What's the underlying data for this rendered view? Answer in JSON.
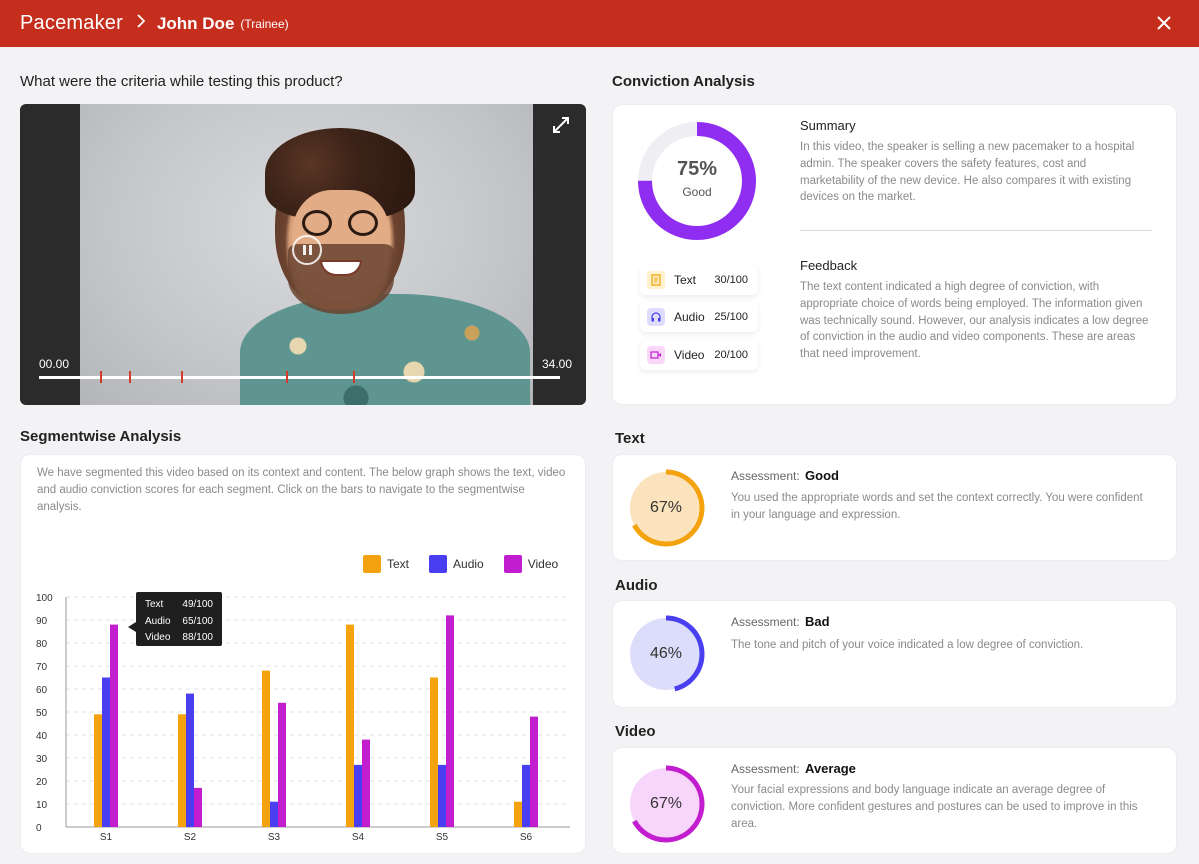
{
  "header": {
    "app_title": "Pacemaker",
    "breadcrumb_sep": ">",
    "name": "John Doe",
    "role": "(Trainee)"
  },
  "question": "What were the criteria while testing this product?",
  "video": {
    "time_start": "00.00",
    "time_end": "34.00"
  },
  "segmentwise": {
    "title": "Segmentwise Analysis",
    "description": "We have segmented this video based on its context and content. The below graph shows the text, video and audio conviction scores for each segment. Click on the bars to navigate to the segmentwise analysis."
  },
  "colors": {
    "text": "#f4a20d",
    "audio": "#4a3ff0",
    "video": "#c21ed0",
    "brand": "#c52d1c"
  },
  "tooltip": {
    "rows": [
      {
        "label": "Text",
        "value": "49/100"
      },
      {
        "label": "Audio",
        "value": "65/100"
      },
      {
        "label": "Video",
        "value": "88/100"
      }
    ]
  },
  "chart_data": {
    "type": "bar",
    "categories": [
      "S1",
      "S2",
      "S3",
      "S4",
      "S5",
      "S6"
    ],
    "series": [
      {
        "name": "Text",
        "values": [
          49,
          49,
          68,
          88,
          65,
          11
        ]
      },
      {
        "name": "Audio",
        "values": [
          65,
          58,
          11,
          27,
          27,
          27
        ]
      },
      {
        "name": "Video",
        "values": [
          88,
          17,
          54,
          38,
          92,
          48
        ]
      }
    ],
    "yticks": [
      0,
      10,
      20,
      30,
      40,
      50,
      60,
      70,
      80,
      90,
      100
    ],
    "ylim": [
      0,
      100
    ],
    "grid": true,
    "legend": "top-right"
  },
  "conviction": {
    "title": "Conviction Analysis",
    "score": "75%",
    "score_value": 75,
    "rating": "Good",
    "pills": [
      {
        "label": "Text",
        "score": "30/100",
        "icon": "document-icon"
      },
      {
        "label": "Audio",
        "score": "25/100",
        "icon": "headphones-icon"
      },
      {
        "label": "Video",
        "score": "20/100",
        "icon": "video-camera-icon"
      }
    ],
    "summary_title": "Summary",
    "summary": "In this video, the speaker is selling a new pacemaker to a hospital admin. The speaker covers the safety features, cost and marketability of the new device. He also compares it with existing devices on the market.",
    "feedback_title": "Feedback",
    "feedback": "The text content indicated a high degree of conviction, with appropriate choice of words being employed. The information given was technically sound. However, our analysis indicates a low degree of conviction in the audio and video components. These are areas that need improvement."
  },
  "assessments": [
    {
      "section": "Text",
      "percent": "67%",
      "value": 67,
      "label": "Assessment:",
      "rating": "Good",
      "text": "You used the appropriate words and set the context correctly. You were confident in your language and expression."
    },
    {
      "section": "Audio",
      "percent": "46%",
      "value": 46,
      "label": "Assessment:",
      "rating": "Bad",
      "text": "The tone and pitch of your voice indicated a low degree of conviction."
    },
    {
      "section": "Video",
      "percent": "67%",
      "value": 67,
      "label": "Assessment:",
      "rating": "Average",
      "text": "Your facial expressions and body language indicate an average degree of conviction. More confident gestures and postures can be used to improve in this area."
    }
  ]
}
